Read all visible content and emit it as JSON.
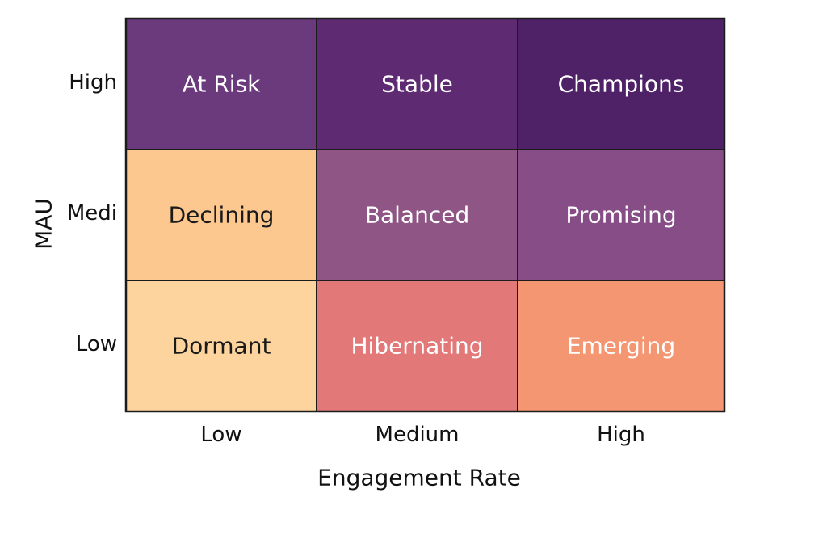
{
  "chart_data": {
    "type": "heatmap",
    "title": "",
    "xlabel": "Engagement Rate",
    "ylabel": "MAU",
    "x_categories": [
      "Low",
      "Medium",
      "High"
    ],
    "y_categories": [
      "High",
      "Medi",
      "Low"
    ],
    "cells": [
      [
        {
          "label": "At Risk",
          "color": "#6b3a7d",
          "text_color": "#ffffff"
        },
        {
          "label": "Stable",
          "color": "#5e2b73",
          "text_color": "#ffffff"
        },
        {
          "label": "Champions",
          "color": "#4f2268",
          "text_color": "#ffffff"
        }
      ],
      [
        {
          "label": "Declining",
          "color": "#fcc88f",
          "text_color": "#1a1a1a"
        },
        {
          "label": "Balanced",
          "color": "#8f5685",
          "text_color": "#ffffff"
        },
        {
          "label": "Promising",
          "color": "#864d87",
          "text_color": "#ffffff"
        }
      ],
      [
        {
          "label": "Dormant",
          "color": "#fdd49d",
          "text_color": "#1a1a1a"
        },
        {
          "label": "Hibernating",
          "color": "#e27878",
          "text_color": "#ffffff"
        },
        {
          "label": "Emerging",
          "color": "#f59672",
          "text_color": "#ffffff"
        }
      ]
    ],
    "grid": true,
    "legend": "none"
  }
}
